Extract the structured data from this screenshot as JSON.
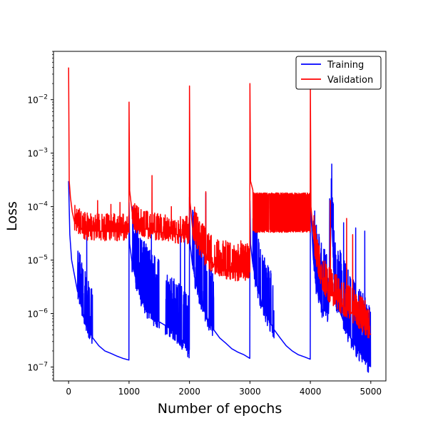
{
  "chart_data": {
    "type": "line",
    "title": "",
    "xlabel": "Number of epochs",
    "ylabel": "Loss",
    "xlim": [
      -250,
      5250
    ],
    "ylim": [
      5.5e-08,
      0.08
    ],
    "yscale": "log",
    "grid": false,
    "legend_position": "top-right",
    "x_ticks": [
      {
        "value": 0,
        "label": "0"
      },
      {
        "value": 1000,
        "label": "1000"
      },
      {
        "value": 2000,
        "label": "2000"
      },
      {
        "value": 3000,
        "label": "3000"
      },
      {
        "value": 4000,
        "label": "4000"
      },
      {
        "value": 5000,
        "label": "5000"
      }
    ],
    "y_ticks": [
      {
        "value": 1e-07,
        "base": "10",
        "exp": "−7"
      },
      {
        "value": 1e-06,
        "base": "10",
        "exp": "−6"
      },
      {
        "value": 1e-05,
        "base": "10",
        "exp": "−5"
      },
      {
        "value": 0.0001,
        "base": "10",
        "exp": "−4"
      },
      {
        "value": 0.001,
        "base": "10",
        "exp": "−3"
      },
      {
        "value": 0.01,
        "base": "10",
        "exp": "−2"
      }
    ],
    "series": [
      {
        "name": "Training",
        "color": "#0000ff",
        "x": [
          0,
          20,
          50,
          100,
          150,
          200,
          300,
          400,
          500,
          600,
          700,
          800,
          900,
          999,
          1000,
          1010,
          1050,
          1100,
          1200,
          1300,
          1400,
          1500,
          1600,
          1700,
          1800,
          1900,
          1999,
          2000,
          2010,
          2050,
          2100,
          2200,
          2300,
          2400,
          2500,
          2600,
          2700,
          2800,
          2900,
          2999,
          3000,
          3010,
          3050,
          3100,
          3200,
          3300,
          3400,
          3500,
          3600,
          3700,
          3800,
          3900,
          3999,
          4000,
          4050,
          4100,
          4200,
          4300,
          4350,
          4400,
          4500,
          4600,
          4700,
          4800,
          4900,
          5000
        ],
        "y": [
          0.0003,
          3e-05,
          1e-05,
          5e-06,
          2.5e-06,
          1.5e-06,
          6e-07,
          3.5e-07,
          2.5e-07,
          2e-07,
          1.8e-07,
          1.6e-07,
          1.45e-07,
          1.35e-07,
          0.00012,
          2e-05,
          9e-06,
          5e-06,
          2e-06,
          1.2e-06,
          9e-07,
          7e-07,
          6e-07,
          5e-07,
          4e-07,
          3e-07,
          2.1e-07,
          0.00015,
          2e-05,
          8e-06,
          4e-06,
          1.5e-06,
          8e-07,
          5e-07,
          3.5e-07,
          2.8e-07,
          2.2e-07,
          1.9e-07,
          1.7e-07,
          1.45e-07,
          0.00013,
          2e-05,
          8e-06,
          4e-06,
          1.5e-06,
          8e-07,
          5e-07,
          3.5e-07,
          2.5e-07,
          2e-07,
          1.7e-07,
          1.55e-07,
          1.4e-07,
          0.00013,
          1e-05,
          3e-06,
          1.2e-06,
          1e-06,
          0.0001,
          2e-06,
          1e-06,
          5e-07,
          3e-07,
          2e-07,
          1.5e-07,
          1e-07
        ],
        "noise_ranges": [
          {
            "x_start": 150,
            "x_end": 400,
            "factor": 8,
            "spikes": [
              {
                "x": 300,
                "y": 3e-05
              }
            ]
          },
          {
            "x_start": 1050,
            "x_end": 1500,
            "factor": 15,
            "spikes": [
              {
                "x": 1370,
                "y": 3e-05
              },
              {
                "x": 1280,
                "y": 2e-05
              }
            ]
          },
          {
            "x_start": 1600,
            "x_end": 2000,
            "factor": 10,
            "spikes": [
              {
                "x": 1850,
                "y": 4e-05
              },
              {
                "x": 1920,
                "y": 3e-05
              }
            ]
          },
          {
            "x_start": 2050,
            "x_end": 2400,
            "factor": 12,
            "spikes": [
              {
                "x": 2270,
                "y": 0.00018
              },
              {
                "x": 2200,
                "y": 2e-05
              }
            ]
          },
          {
            "x_start": 3050,
            "x_end": 3400,
            "factor": 10,
            "spikes": [
              {
                "x": 3050,
                "y": 6e-05
              }
            ]
          },
          {
            "x_start": 4050,
            "x_end": 5000,
            "factor": 15,
            "spikes": [
              {
                "x": 4320,
                "y": 0.00014
              },
              {
                "x": 4550,
                "y": 5e-05
              },
              {
                "x": 4750,
                "y": 4e-05
              },
              {
                "x": 4900,
                "y": 3.5e-05
              }
            ]
          }
        ]
      },
      {
        "name": "Validation",
        "color": "#ff0000",
        "x": [
          0,
          10,
          30,
          60,
          100,
          200,
          300,
          400,
          500,
          600,
          700,
          800,
          900,
          999,
          1000,
          1010,
          1050,
          1100,
          1200,
          1400,
          1600,
          1800,
          1999,
          2000,
          2010,
          2050,
          2100,
          2200,
          2300,
          2500,
          2700,
          2999,
          3000,
          3010,
          3050,
          3100,
          3200,
          3500,
          3800,
          3999,
          4000,
          4010,
          4050,
          4100,
          4200,
          4300,
          4400,
          4500,
          4600,
          4700,
          4800,
          4900,
          5000
        ],
        "y": [
          0.04,
          0.0003,
          0.00015,
          8e-05,
          5e-05,
          4e-05,
          3.5e-05,
          3.5e-05,
          3.5e-05,
          3.4e-05,
          3.4e-05,
          3.4e-05,
          3.4e-05,
          3.4e-05,
          0.009,
          0.0002,
          8e-05,
          5e-05,
          4e-05,
          3.5e-05,
          3.2e-05,
          3e-05,
          3e-05,
          0.018,
          0.00012,
          4e-05,
          2.5e-05,
          1.5e-05,
          1e-05,
          7e-06,
          6e-06,
          6e-06,
          0.02,
          0.0003,
          0.0002,
          0.00015,
          0.0001,
          6e-05,
          4e-05,
          3.5e-05,
          0.018,
          0.0001,
          3e-05,
          1e-05,
          4e-06,
          2.5e-06,
          2e-06,
          1.5e-06,
          1.2e-06,
          1e-06,
          8e-07,
          6e-07,
          4e-07
        ],
        "noise_ranges": [
          {
            "x_start": 100,
            "x_end": 999,
            "factor": 2.2,
            "spikes": [
              {
                "x": 480,
                "y": 0.00013
              },
              {
                "x": 700,
                "y": 0.00011
              },
              {
                "x": 850,
                "y": 0.00012
              }
            ]
          },
          {
            "x_start": 1050,
            "x_end": 1999,
            "factor": 2.2,
            "spikes": [
              {
                "x": 1380,
                "y": 0.00038
              },
              {
                "x": 1700,
                "y": 0.0001
              }
            ]
          },
          {
            "x_start": 2050,
            "x_end": 2999,
            "factor": 3.5,
            "spikes": [
              {
                "x": 2270,
                "y": 0.00019
              },
              {
                "x": 2350,
                "y": 2.3e-05
              },
              {
                "x": 2600,
                "y": 2.3e-05
              },
              {
                "x": 2850,
                "y": 2.3e-05
              }
            ]
          },
          {
            "x_start": 3050,
            "x_end": 3999,
            "factor": 5,
            "band": [
              3.3e-05,
              0.00018
            ],
            "spikes": []
          },
          {
            "x_start": 4050,
            "x_end": 5000,
            "factor": 3,
            "spikes": [
              {
                "x": 4330,
                "y": 0.00013
              },
              {
                "x": 4600,
                "y": 6e-05
              },
              {
                "x": 4700,
                "y": 3e-05
              },
              {
                "x": 4950,
                "y": 1.2e-06
              }
            ]
          }
        ]
      }
    ]
  }
}
